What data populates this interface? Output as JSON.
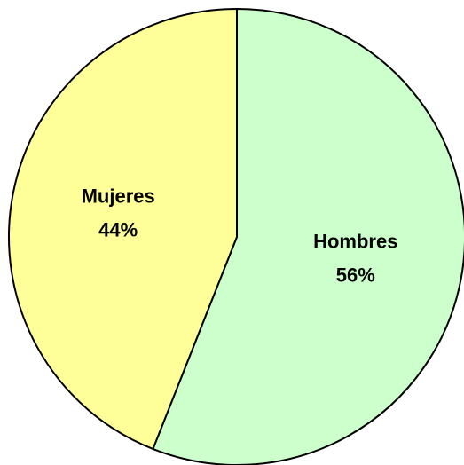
{
  "chart_data": {
    "type": "pie",
    "categories": [
      "Hombres",
      "Mujeres"
    ],
    "values": [
      56,
      44
    ],
    "value_labels": [
      "56%",
      "44%"
    ],
    "colors": [
      "#ccffcc",
      "#ffff99"
    ]
  }
}
